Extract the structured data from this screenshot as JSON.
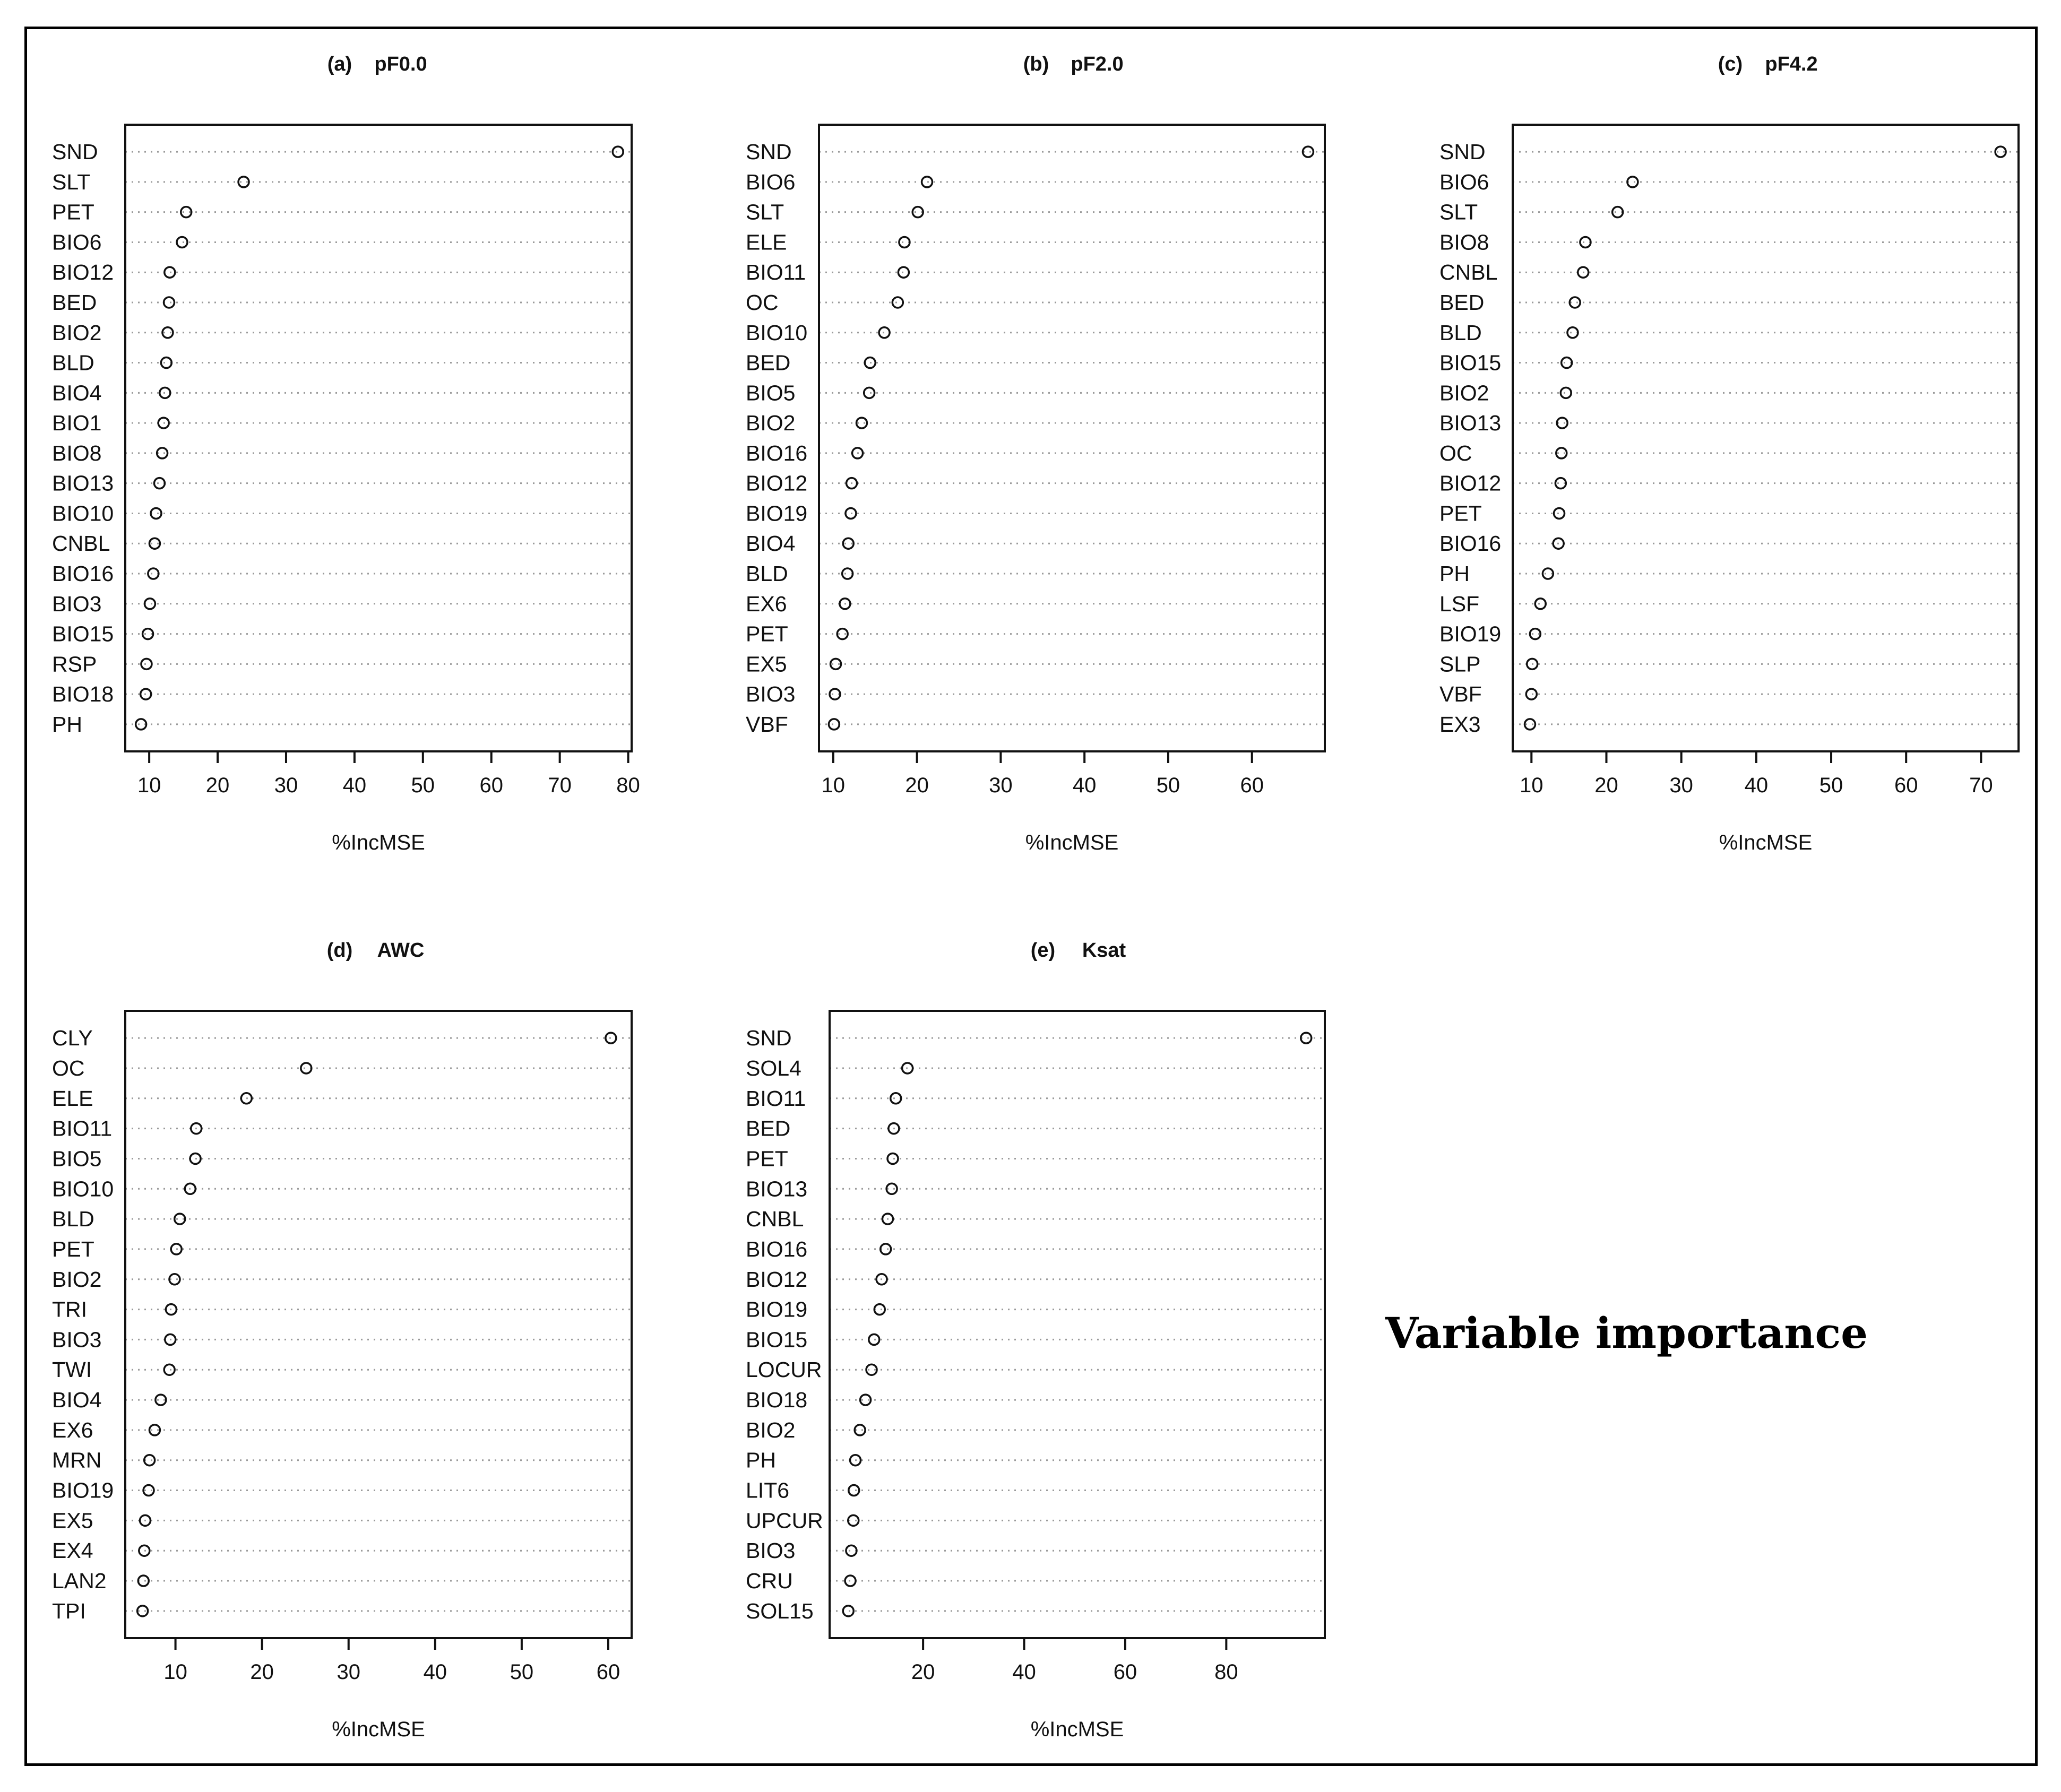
{
  "caption": "Variable importance",
  "chart_data": [
    {
      "type": "scatter",
      "panel": "(a)",
      "title": "pF0.0",
      "xlabel": "%IncMSE",
      "xlim": [
        6.5,
        80.5
      ],
      "xticks": [
        10,
        20,
        30,
        40,
        50,
        60,
        70,
        80
      ],
      "grid": "dotted horizontal",
      "categories": [
        "SND",
        "SLT",
        "PET",
        "BIO6",
        "BIO12",
        "BED",
        "BIO2",
        "BLD",
        "BIO4",
        "BIO1",
        "BIO8",
        "BIO13",
        "BIO10",
        "CNBL",
        "BIO16",
        "BIO3",
        "BIO15",
        "RSP",
        "BIO18",
        "PH"
      ],
      "values": [
        78.5,
        23.8,
        15.4,
        14.8,
        13.0,
        12.9,
        12.7,
        12.5,
        12.3,
        12.1,
        11.9,
        11.5,
        11.0,
        10.8,
        10.6,
        10.1,
        9.8,
        9.6,
        9.5,
        8.8
      ]
    },
    {
      "type": "scatter",
      "panel": "(b)",
      "title": "pF2.0",
      "xlabel": "%IncMSE",
      "xlim": [
        8.3,
        68.7
      ],
      "xticks": [
        10,
        20,
        30,
        40,
        50,
        60
      ],
      "grid": "dotted horizontal",
      "categories": [
        "SND",
        "BIO6",
        "SLT",
        "ELE",
        "BIO11",
        "OC",
        "BIO10",
        "BED",
        "BIO5",
        "BIO2",
        "BIO16",
        "BIO12",
        "BIO19",
        "BIO4",
        "BLD",
        "EX6",
        "PET",
        "EX5",
        "BIO3",
        "VBF"
      ],
      "values": [
        66.7,
        21.2,
        20.1,
        18.5,
        18.4,
        17.7,
        16.1,
        14.4,
        14.3,
        13.4,
        12.9,
        12.2,
        12.1,
        11.8,
        11.7,
        11.4,
        11.1,
        10.3,
        10.2,
        10.1
      ]
    },
    {
      "type": "scatter",
      "panel": "(c)",
      "title": "pF4.2",
      "xlabel": "%IncMSE",
      "xlim": [
        7.5,
        75.0
      ],
      "xticks": [
        10,
        20,
        30,
        40,
        50,
        60,
        70
      ],
      "grid": "dotted horizontal",
      "categories": [
        "SND",
        "BIO6",
        "SLT",
        "BIO8",
        "CNBL",
        "BED",
        "BLD",
        "BIO15",
        "BIO2",
        "BIO13",
        "OC",
        "BIO12",
        "PET",
        "BIO16",
        "PH",
        "LSF",
        "BIO19",
        "SLP",
        "VBF",
        "EX3"
      ],
      "values": [
        72.6,
        23.5,
        21.5,
        17.2,
        16.9,
        15.8,
        15.5,
        14.7,
        14.6,
        14.1,
        14.0,
        13.9,
        13.7,
        13.6,
        12.2,
        11.2,
        10.5,
        10.1,
        10.0,
        9.8
      ]
    },
    {
      "type": "scatter",
      "panel": "(d)",
      "title": "AWC",
      "xlabel": "%IncMSE",
      "xlim": [
        4.2,
        62.7
      ],
      "xticks": [
        10,
        20,
        30,
        40,
        50,
        60
      ],
      "grid": "dotted horizontal",
      "categories": [
        "CLY",
        "OC",
        "ELE",
        "BIO11",
        "BIO5",
        "BIO10",
        "BLD",
        "PET",
        "BIO2",
        "TRI",
        "BIO3",
        "TWI",
        "BIO4",
        "EX6",
        "MRN",
        "BIO19",
        "EX5",
        "EX4",
        "LAN2",
        "TPI"
      ],
      "values": [
        60.3,
        25.1,
        18.2,
        12.4,
        12.3,
        11.7,
        10.5,
        10.1,
        9.9,
        9.5,
        9.4,
        9.3,
        8.3,
        7.6,
        7.0,
        6.9,
        6.5,
        6.4,
        6.3,
        6.2
      ]
    },
    {
      "type": "scatter",
      "panel": "(e)",
      "title": "Ksat",
      "xlabel": "%IncMSE",
      "xlim": [
        1.5,
        99.5
      ],
      "xticks": [
        20,
        40,
        60,
        80
      ],
      "grid": "dotted horizontal",
      "categories": [
        "SND",
        "SOL4",
        "BIO11",
        "BED",
        "PET",
        "BIO13",
        "CNBL",
        "BIO16",
        "BIO12",
        "BIO19",
        "BIO15",
        "LOCUR",
        "BIO18",
        "BIO2",
        "PH",
        "LIT6",
        "UPCUR",
        "BIO3",
        "CRU",
        "SOL15"
      ],
      "values": [
        95.8,
        16.9,
        14.6,
        14.2,
        14.0,
        13.8,
        13.0,
        12.6,
        11.8,
        11.4,
        10.3,
        9.8,
        8.6,
        7.5,
        6.6,
        6.3,
        6.2,
        5.8,
        5.6,
        5.2
      ]
    }
  ]
}
